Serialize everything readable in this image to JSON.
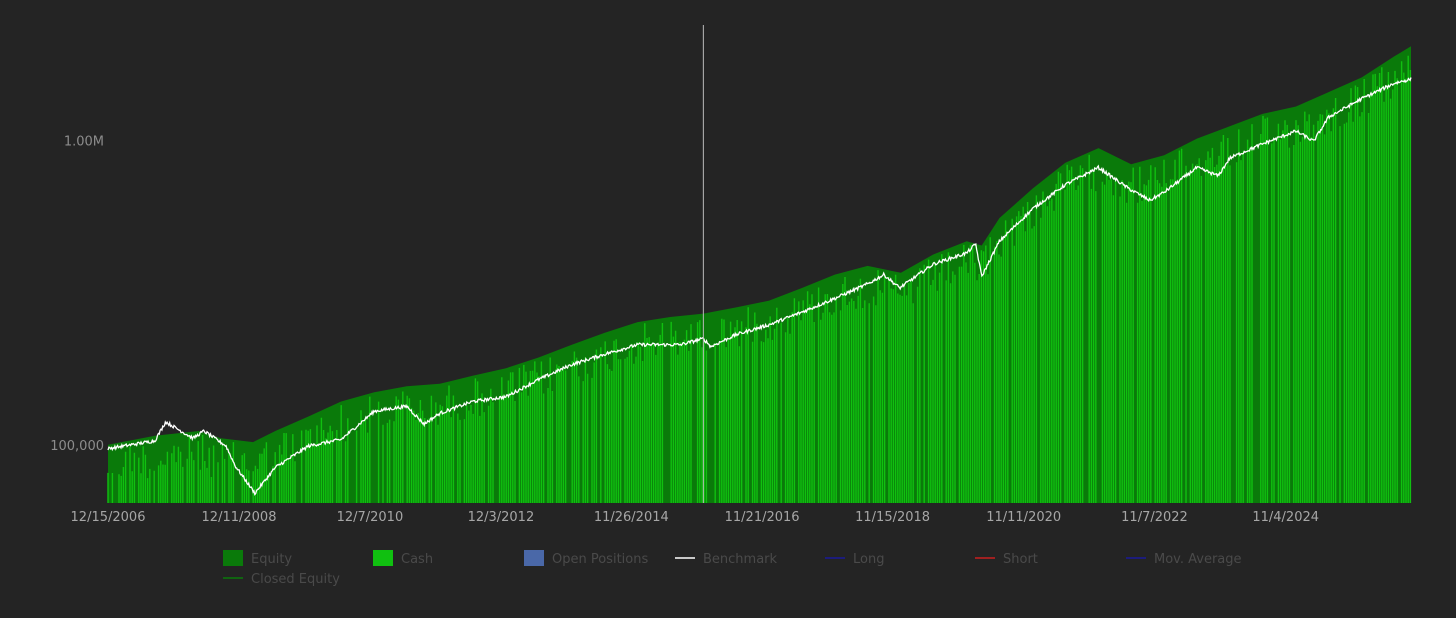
{
  "chart_data": {
    "type": "area",
    "title": "",
    "xlabel": "",
    "ylabel": "",
    "y_scale": "log",
    "ylim": [
      65000,
      2500000
    ],
    "xlim": [
      "12/15/2006",
      "9/30/2026"
    ],
    "grid": false,
    "yticks": [
      {
        "value": 100000,
        "label": "100,000"
      },
      {
        "value": 1000000,
        "label": "1.00M"
      }
    ],
    "xticks": [
      "12/15/2006",
      "12/11/2008",
      "12/7/2010",
      "12/3/2012",
      "11/26/2014",
      "11/21/2016",
      "11/15/2018",
      "11/11/2020",
      "11/7/2022",
      "11/4/2024"
    ],
    "cursor_x": "12/31/2015",
    "colors": {
      "background": "#242424",
      "equity": "#0a7a0a",
      "cash": "#10c010",
      "open_positions": "#4a68a8",
      "benchmark": "#ffffff",
      "long": "#1a1a9a",
      "short": "#c81e1e",
      "moving_average": "#1a1a9a",
      "closed_equity": "#0a7a0a",
      "cursor": "#bbbbbb",
      "axis_text": "#a6a6a6",
      "legend_text": "#4a4a4a"
    },
    "legend": {
      "position": "bottom",
      "items": [
        {
          "label": "Equity",
          "kind": "box",
          "color": "#0a7a0a"
        },
        {
          "label": "Cash",
          "kind": "box",
          "color": "#10c010"
        },
        {
          "label": "Open Positions",
          "kind": "box",
          "color": "#4a68a8"
        },
        {
          "label": "Benchmark",
          "kind": "line",
          "color": "#ffffff"
        },
        {
          "label": "Long",
          "kind": "line",
          "color": "#1a1a9a"
        },
        {
          "label": "Short",
          "kind": "line",
          "color": "#c81e1e"
        },
        {
          "label": "Mov. Average",
          "kind": "line",
          "color": "#1a1a9a"
        },
        {
          "label": "Closed Equity",
          "kind": "line",
          "color": "#0a7a0a"
        }
      ]
    },
    "series": [
      {
        "name": "Equity",
        "type": "area",
        "x": [
          "12/15/2006",
          "9/1/2007",
          "5/1/2008",
          "9/1/2008",
          "2/27/2009",
          "6/30/2009",
          "12/31/2009",
          "6/30/2010",
          "12/31/2010",
          "6/30/2011",
          "12/30/2011",
          "6/29/2012",
          "12/31/2012",
          "6/28/2013",
          "12/31/2013",
          "6/30/2014",
          "12/31/2014",
          "6/30/2015",
          "12/31/2015",
          "6/30/2016",
          "12/30/2016",
          "6/30/2017",
          "12/29/2017",
          "6/29/2018",
          "12/31/2018",
          "6/28/2019",
          "12/31/2019",
          "3/23/2020",
          "6/30/2020",
          "12/31/2020",
          "6/30/2021",
          "12/31/2021",
          "6/30/2022",
          "12/30/2022",
          "6/30/2023",
          "12/29/2023",
          "6/28/2024",
          "12/31/2024",
          "6/30/2025",
          "12/31/2025",
          "6/30/2026",
          "9/30/2026"
        ],
        "values": [
          101000,
          108000,
          112000,
          106000,
          103000,
          112000,
          125000,
          140000,
          150000,
          157000,
          160000,
          170000,
          180000,
          195000,
          215000,
          235000,
          255000,
          265000,
          272000,
          285000,
          300000,
          330000,
          365000,
          390000,
          370000,
          425000,
          470000,
          455000,
          560000,
          700000,
          850000,
          950000,
          840000,
          900000,
          1020000,
          1120000,
          1230000,
          1300000,
          1450000,
          1620000,
          1900000,
          2050000
        ]
      },
      {
        "name": "Benchmark",
        "type": "line",
        "x": [
          "12/15/2006",
          "9/1/2007",
          "10/31/2007",
          "3/31/2008",
          "5/30/2008",
          "9/30/2008",
          "11/20/2008",
          "3/9/2009",
          "6/30/2009",
          "12/31/2009",
          "6/30/2010",
          "12/31/2010",
          "6/30/2011",
          "10/3/2011",
          "12/30/2011",
          "6/29/2012",
          "12/31/2012",
          "6/28/2013",
          "12/31/2013",
          "6/30/2014",
          "12/31/2014",
          "8/25/2015",
          "12/31/2015",
          "2/11/2016",
          "6/30/2016",
          "12/30/2016",
          "6/30/2017",
          "12/29/2017",
          "6/29/2018",
          "9/28/2018",
          "12/24/2018",
          "6/28/2019",
          "12/31/2019",
          "2/19/2020",
          "3/23/2020",
          "6/30/2020",
          "12/31/2020",
          "6/30/2021",
          "12/31/2021",
          "6/16/2022",
          "10/12/2022",
          "12/30/2022",
          "6/30/2023",
          "10/27/2023",
          "12/29/2023",
          "6/28/2024",
          "12/31/2024",
          "4/8/2025",
          "6/30/2025",
          "12/31/2025",
          "6/30/2026",
          "9/30/2026"
        ],
        "values": [
          98000,
          104000,
          120000,
          106000,
          112000,
          100000,
          86000,
          70000,
          85000,
          100000,
          105000,
          130000,
          135000,
          118000,
          128000,
          140000,
          145000,
          165000,
          185000,
          200000,
          215000,
          215000,
          225000,
          212000,
          232000,
          250000,
          275000,
          305000,
          340000,
          365000,
          330000,
          395000,
          430000,
          460000,
          360000,
          470000,
          600000,
          720000,
          820000,
          700000,
          640000,
          680000,
          820000,
          770000,
          880000,
          980000,
          1080000,
          1000000,
          1200000,
          1380000,
          1550000,
          1600000
        ]
      }
    ]
  }
}
